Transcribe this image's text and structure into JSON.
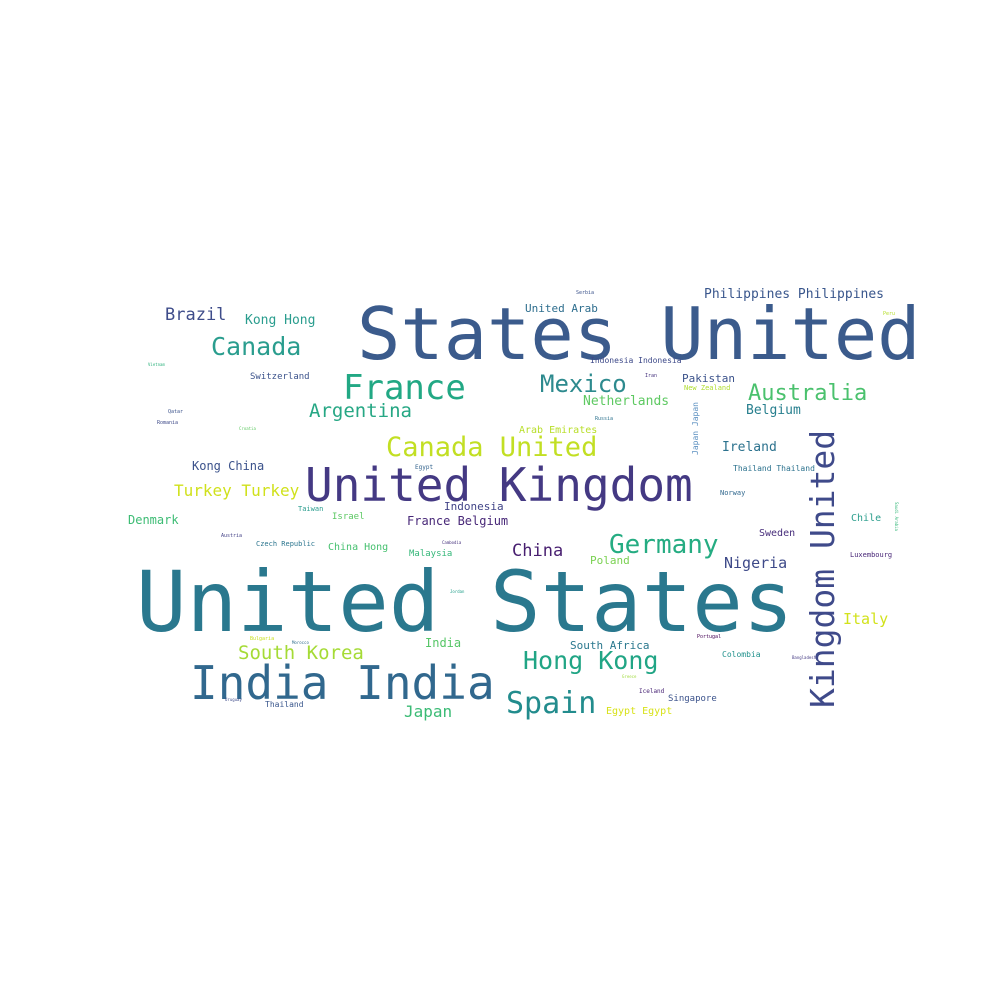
{
  "words": [
    {
      "text": "United States",
      "color": "#2a788e"
    },
    {
      "text": "States United",
      "color": "#3b5b8c"
    },
    {
      "text": "United Kingdom",
      "color": "#443983"
    },
    {
      "text": "India India",
      "color": "#31688e"
    },
    {
      "text": "Kingdom United",
      "color": "#3f4a8a"
    },
    {
      "text": "France",
      "color": "#22a884"
    },
    {
      "text": "Canada United",
      "color": "#c2df23"
    },
    {
      "text": "Canada",
      "color": "#2a9d8e"
    },
    {
      "text": "Mexico",
      "color": "#2d8a8e"
    },
    {
      "text": "Germany",
      "color": "#25ac82"
    },
    {
      "text": "Australia",
      "color": "#4ac16d"
    },
    {
      "text": "Hong Kong",
      "color": "#21a585"
    },
    {
      "text": "Spain",
      "color": "#228c8d"
    },
    {
      "text": "South Korea",
      "color": "#a5db36"
    },
    {
      "text": "Argentina",
      "color": "#26a784"
    },
    {
      "text": "Brazil",
      "color": "#3e4c8a"
    },
    {
      "text": "Turkey Turkey",
      "color": "#d0e11c"
    },
    {
      "text": "Japan",
      "color": "#3bbb75"
    },
    {
      "text": "China",
      "color": "#481f70"
    },
    {
      "text": "Nigeria",
      "color": "#3e4a89"
    },
    {
      "text": "Italy",
      "color": "#d2e21b"
    },
    {
      "text": "Philippines Philippines",
      "color": "#39568c"
    },
    {
      "text": "Netherlands",
      "color": "#5ec962"
    },
    {
      "text": "Belgium",
      "color": "#277f8e"
    },
    {
      "text": "Ireland",
      "color": "#2c728e"
    },
    {
      "text": "Kong Hong",
      "color": "#2a9d8e"
    },
    {
      "text": "United Arab",
      "color": "#2e6e8e"
    },
    {
      "text": "Kong China",
      "color": "#3b528b"
    },
    {
      "text": "Denmark",
      "color": "#3dbc74"
    },
    {
      "text": "France Belgium",
      "color": "#482878"
    },
    {
      "text": "Indonesia",
      "color": "#414487"
    },
    {
      "text": "Poland",
      "color": "#7ad151"
    },
    {
      "text": "India",
      "color": "#56c667"
    },
    {
      "text": "South Africa",
      "color": "#2a788e"
    },
    {
      "text": "Pakistan",
      "color": "#3b528b"
    },
    {
      "text": "Arab Emirates",
      "color": "#b8de29"
    },
    {
      "text": "Switzerland",
      "color": "#3b528b"
    },
    {
      "text": "Chile",
      "color": "#2c9e8d"
    },
    {
      "text": "Sweden",
      "color": "#472d7b"
    },
    {
      "text": "Israel",
      "color": "#5cc863"
    },
    {
      "text": "China Hong",
      "color": "#46c06f"
    },
    {
      "text": "Malaysia",
      "color": "#35b779"
    },
    {
      "text": "Egypt Egypt",
      "color": "#d8e219"
    },
    {
      "text": "Singapore",
      "color": "#3b528b"
    },
    {
      "text": "Thailand Thailand",
      "color": "#2c728e"
    },
    {
      "text": "Czech Republic",
      "color": "#2b758e"
    },
    {
      "text": "Colombia",
      "color": "#21918c"
    },
    {
      "text": "Thailand",
      "color": "#39568c"
    },
    {
      "text": "Indonesia Indonesia",
      "color": "#3e4a89"
    },
    {
      "text": "Japan Japan",
      "color": "#5b8fc0"
    },
    {
      "text": "Norway",
      "color": "#31688e"
    },
    {
      "text": "Luxembourg",
      "color": "#482677"
    },
    {
      "text": "Taiwan",
      "color": "#2a9d8e"
    },
    {
      "text": "Iceland",
      "color": "#482475"
    },
    {
      "text": "Portugal",
      "color": "#440154"
    },
    {
      "text": "New Zealand",
      "color": "#b0dd2f"
    },
    {
      "text": "Serbia",
      "color": "#3b528b"
    },
    {
      "text": "Russia",
      "color": "#2c728e"
    },
    {
      "text": "Egypt",
      "color": "#33638d"
    },
    {
      "text": "Iran",
      "color": "#46337e"
    },
    {
      "text": "Peru",
      "color": "#b5de2b"
    },
    {
      "text": "Qatar",
      "color": "#3b528b"
    },
    {
      "text": "Romania",
      "color": "#3e4a89"
    },
    {
      "text": "Austria",
      "color": "#424086"
    },
    {
      "text": "Vietnam",
      "color": "#2db27d"
    },
    {
      "text": "Croatia",
      "color": "#5ec962"
    },
    {
      "text": "Jordan",
      "color": "#1f9e89"
    },
    {
      "text": "Bulgaria",
      "color": "#c8e020"
    },
    {
      "text": "Morocco",
      "color": "#2f6c8e"
    },
    {
      "text": "Uruguay",
      "color": "#3e4a89"
    },
    {
      "text": "Cambodia",
      "color": "#46327e"
    },
    {
      "text": "Bangladesh",
      "color": "#443a83"
    },
    {
      "text": "Greece",
      "color": "#9fda3a"
    },
    {
      "text": "Saudi Arabia",
      "color": "#35b779"
    }
  ]
}
